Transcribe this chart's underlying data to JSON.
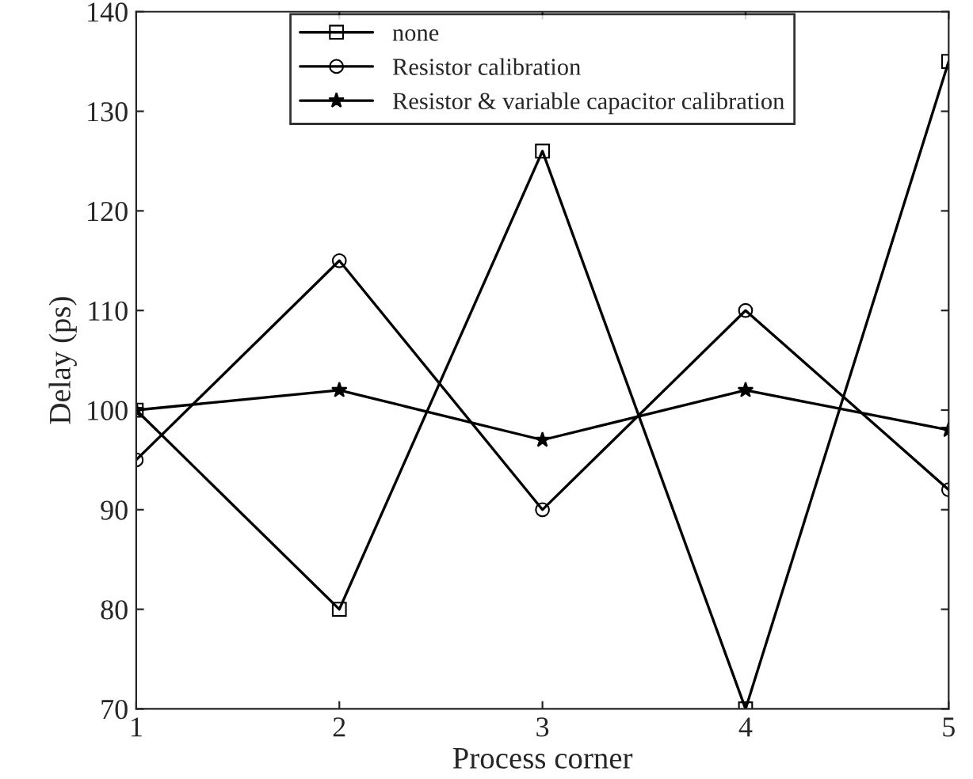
{
  "chart_data": {
    "type": "line",
    "xlabel": "Process corner",
    "ylabel": "Delay (ps)",
    "x": [
      1,
      2,
      3,
      4,
      5
    ],
    "xlim": [
      1,
      5
    ],
    "xticks": [
      1,
      2,
      3,
      4,
      5
    ],
    "ylim": [
      70,
      140
    ],
    "yticks": [
      70,
      80,
      90,
      100,
      110,
      120,
      130,
      140
    ],
    "grid": false,
    "legend": "top",
    "series": [
      {
        "name": "none",
        "color": "#000000",
        "marker": "square",
        "values": [
          100,
          80,
          126,
          70,
          135
        ]
      },
      {
        "name": "Resistor calibration",
        "color": "#000000",
        "marker": "circle",
        "values": [
          95,
          115,
          90,
          110,
          92
        ]
      },
      {
        "name": "Resistor & variable capacitor calibration",
        "color": "#000000",
        "marker": "star",
        "values": [
          100,
          102,
          97,
          102,
          98
        ]
      }
    ]
  }
}
